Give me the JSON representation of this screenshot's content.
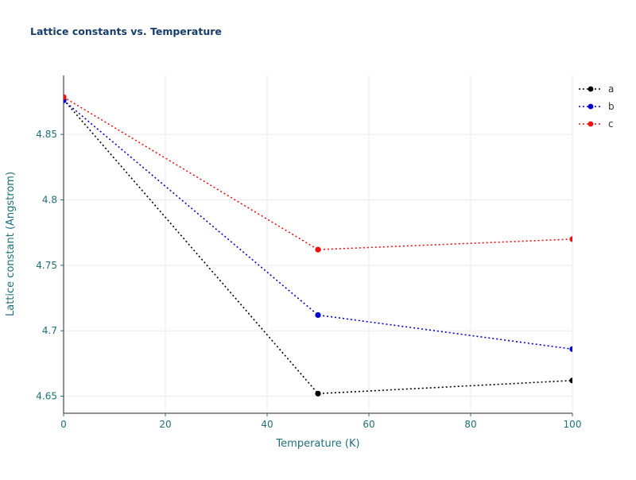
{
  "chart_data": {
    "type": "line",
    "title": "Lattice constants vs. Temperature",
    "xlabel": "Temperature (K)",
    "ylabel": "Lattice constant (Angstrom)",
    "x": [
      0,
      50,
      100
    ],
    "series": [
      {
        "name": "a",
        "color": "#000000",
        "values": [
          4.8765,
          4.652,
          4.662
        ]
      },
      {
        "name": "b",
        "color": "#0000cc",
        "values": [
          4.876,
          4.712,
          4.686
        ]
      },
      {
        "name": "c",
        "color": "#ee1111",
        "values": [
          4.8785,
          4.762,
          4.77
        ]
      }
    ],
    "xlim": [
      0,
      100
    ],
    "ylim": [
      4.637,
      4.895
    ],
    "xticks": [
      0,
      20,
      40,
      60,
      80,
      100
    ],
    "yticks": [
      4.65,
      4.7,
      4.75,
      4.8,
      4.85
    ],
    "grid": true,
    "line_style": "dotted",
    "marker": "circle",
    "legend_position": "top-right",
    "legend_entries": [
      "a",
      "b",
      "c"
    ],
    "colors": {
      "title": "#173d6b",
      "axis_label": "#1f6f7a",
      "tick_label": "#1f6f7a",
      "grid": "#e8e8f1",
      "axis_line": "#222222",
      "legend_label": "#333333",
      "background": "#ffffff"
    }
  }
}
